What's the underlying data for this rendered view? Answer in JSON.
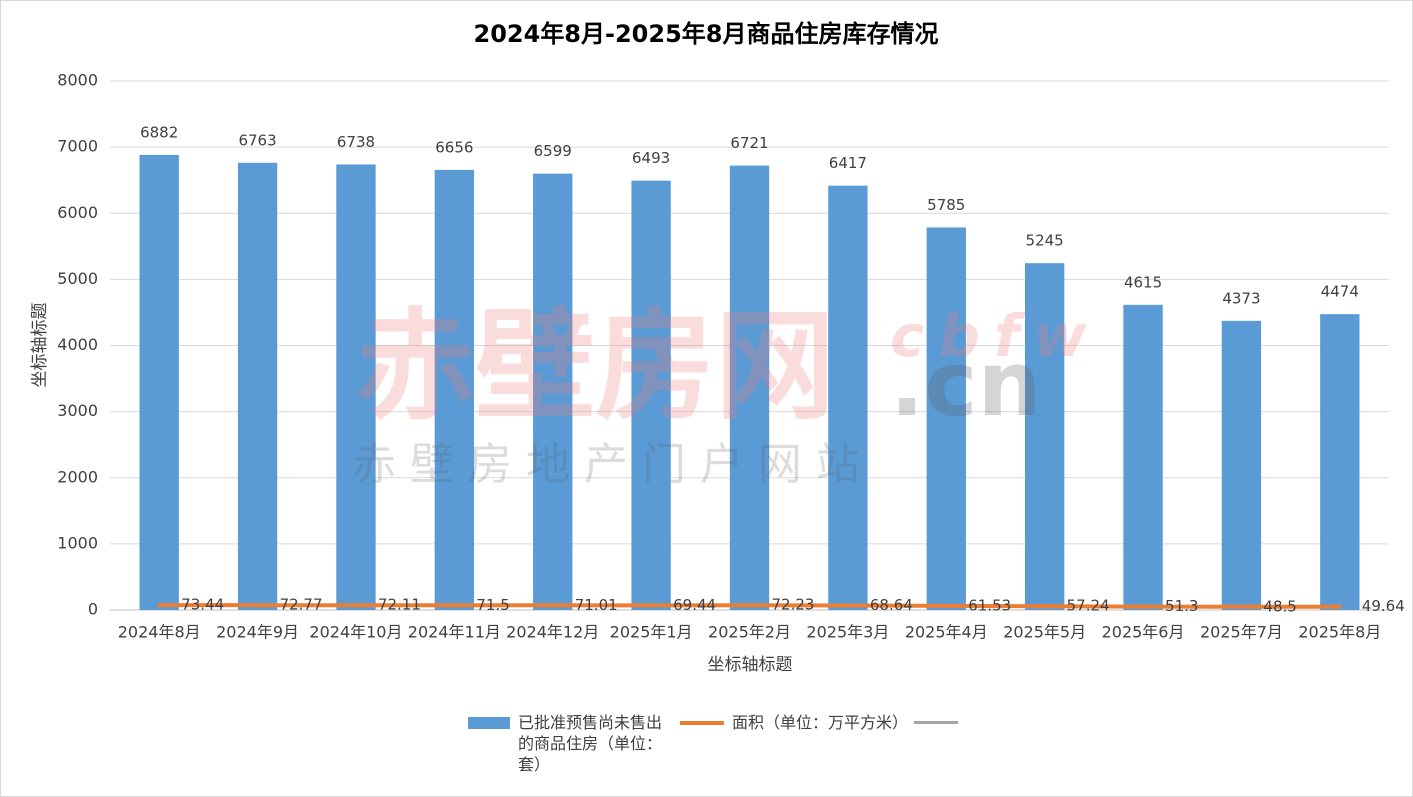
{
  "chart_data": {
    "type": "bar",
    "title": "2024年8月-2025年8月商品住房库存情况",
    "x_label": "坐标轴标题",
    "y_label": "坐标轴标题",
    "categories": [
      "2024年8月",
      "2024年9月",
      "2024年10月",
      "2024年11月",
      "2024年12月",
      "2025年1月",
      "2025年2月",
      "2025年3月",
      "2025年4月",
      "2025年5月",
      "2025年6月",
      "2025年7月",
      "2025年8月"
    ],
    "series": [
      {
        "name": "已批准预售尚未售出的商品住房（单位：套）",
        "type": "bar",
        "color": "#5b9bd5",
        "values": [
          6882,
          6763,
          6738,
          6656,
          6599,
          6493,
          6721,
          6417,
          5785,
          5245,
          4615,
          4373,
          4474
        ]
      },
      {
        "name": "面积（单位：万平方米）",
        "type": "line",
        "color": "#ed7d31",
        "values": [
          73.44,
          72.77,
          72.11,
          71.5,
          71.01,
          69.44,
          72.23,
          68.64,
          61.53,
          57.24,
          51.3,
          48.5,
          49.64
        ]
      }
    ],
    "ylim": [
      0,
      8000
    ],
    "yticks": [
      0,
      1000,
      2000,
      3000,
      4000,
      5000,
      6000,
      7000,
      8000
    ],
    "grid": true,
    "legend": "bottom",
    "watermark": {
      "main": "赤壁房网",
      "latin": "cbfw",
      "domain": ".cn",
      "sub": "赤 壁 房 地 产 门 户 网 站"
    }
  }
}
